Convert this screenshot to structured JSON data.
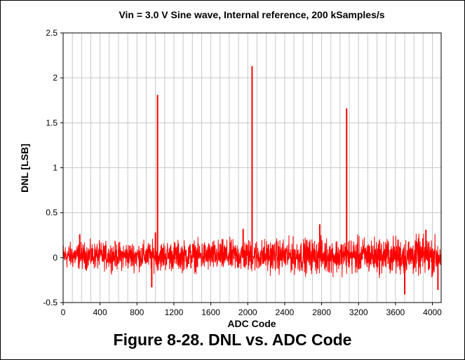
{
  "chart_data": {
    "type": "line",
    "title": "Vin = 3.0 V Sine wave, Internal reference, 200 kSamples/s",
    "xlabel": "ADC Code",
    "ylabel": "DNL [LSB]",
    "xlim": [
      0,
      4095
    ],
    "ylim": [
      -0.5,
      2.5
    ],
    "x_ticks": [
      "0",
      "400",
      "800",
      "1200",
      "1600",
      "2000",
      "2400",
      "2800",
      "3200",
      "3600",
      "4000"
    ],
    "y_ticks": [
      "-0.5",
      "0",
      "0.5",
      "1",
      "1.5",
      "2",
      "2.5"
    ],
    "grid": true,
    "series": [
      {
        "color": "#ff0000",
        "noise": {
          "x_start": 0,
          "x_end": 4095,
          "typical_min": -0.22,
          "typical_max": 0.22,
          "min": -0.41,
          "max": 0.32
        },
        "spikes": [
          {
            "x": 1023,
            "y": 1.81
          },
          {
            "x": 2047,
            "y": 2.13
          },
          {
            "x": 3071,
            "y": 1.66
          },
          {
            "x": 180,
            "y": 0.26
          },
          {
            "x": 1000,
            "y": 0.28
          },
          {
            "x": 1950,
            "y": 0.32
          },
          {
            "x": 2780,
            "y": 0.37
          },
          {
            "x": 3930,
            "y": 0.31
          },
          {
            "x": 960,
            "y": -0.33
          },
          {
            "x": 3700,
            "y": -0.41
          },
          {
            "x": 4060,
            "y": -0.36
          }
        ]
      }
    ]
  },
  "caption": "Figure 8-28. DNL vs. ADC Code"
}
